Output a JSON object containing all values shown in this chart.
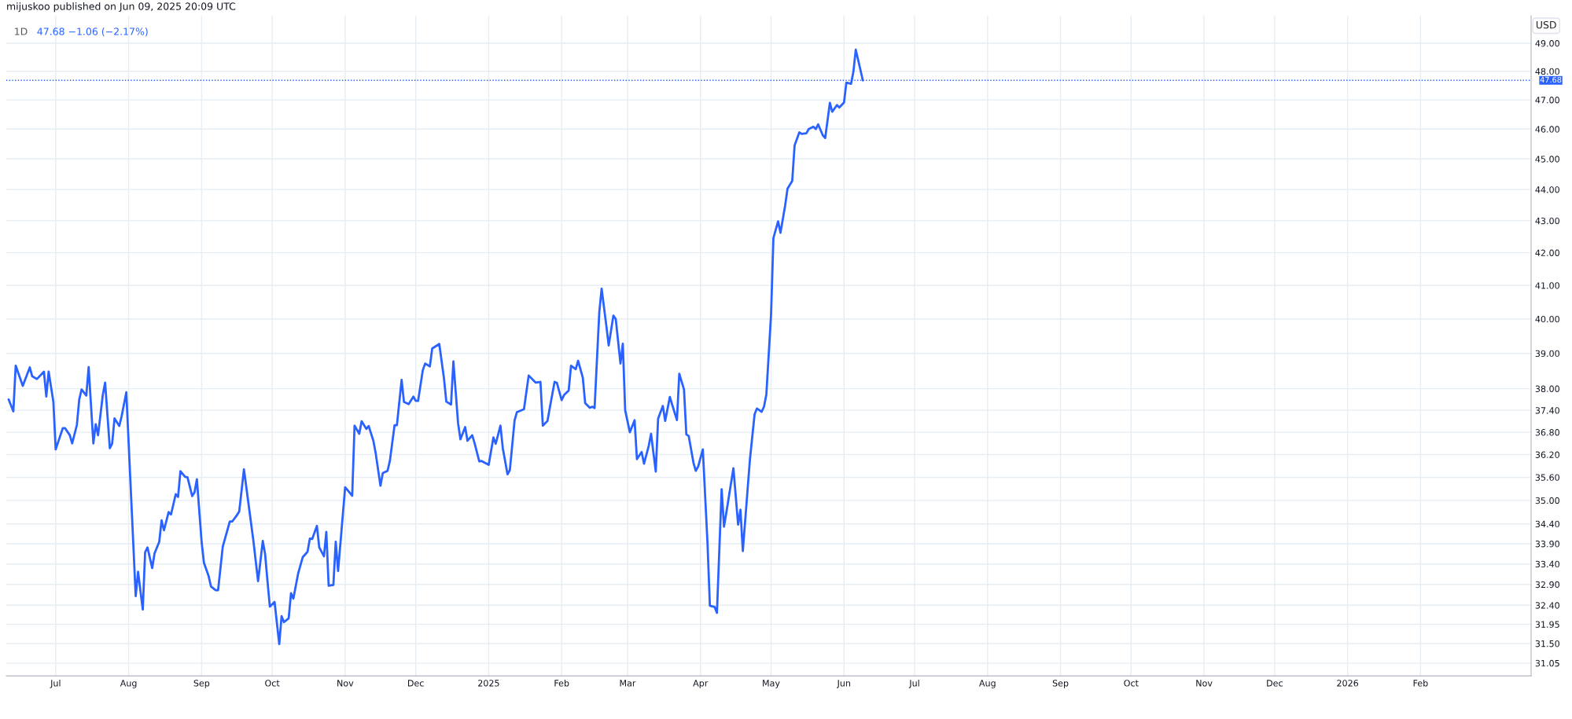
{
  "chart_data": {
    "type": "line",
    "title": "mijuskoo published on Jun 09, 2025 20:09 UTC",
    "subtitle": "1D",
    "ylabel": "USD",
    "annotations": [
      "47.68 −1.06 (−2.17%)"
    ],
    "x": [
      "2024-06-11",
      "2024-06-13",
      "2024-06-14",
      "2024-06-17",
      "2024-06-20",
      "2024-06-21",
      "2024-06-23",
      "2024-06-26",
      "2024-06-27",
      "2024-06-28",
      "2024-06-30",
      "2024-07-01",
      "2024-07-02",
      "2024-07-04",
      "2024-07-05",
      "2024-07-07",
      "2024-07-08",
      "2024-07-10",
      "2024-07-11",
      "2024-07-12",
      "2024-07-14",
      "2024-07-15",
      "2024-07-17",
      "2024-07-18",
      "2024-07-19",
      "2024-07-21",
      "2024-07-22",
      "2024-07-24",
      "2024-07-25",
      "2024-07-26",
      "2024-07-28",
      "2024-07-29",
      "2024-07-31",
      "2024-08-04",
      "2024-08-05",
      "2024-08-07",
      "2024-08-08",
      "2024-08-09",
      "2024-08-11",
      "2024-08-12",
      "2024-08-14",
      "2024-08-15",
      "2024-08-16",
      "2024-08-18",
      "2024-08-19",
      "2024-08-21",
      "2024-08-22",
      "2024-08-23",
      "2024-08-25",
      "2024-08-26",
      "2024-08-28",
      "2024-08-29",
      "2024-08-30",
      "2024-09-01",
      "2024-09-02",
      "2024-09-04",
      "2024-09-05",
      "2024-09-07",
      "2024-09-08",
      "2024-09-10",
      "2024-09-11",
      "2024-09-13",
      "2024-09-14",
      "2024-09-16",
      "2024-09-17",
      "2024-09-19",
      "2024-09-23",
      "2024-09-25",
      "2024-09-27",
      "2024-09-28",
      "2024-09-29",
      "2024-09-30",
      "2024-10-02",
      "2024-10-04",
      "2024-10-05",
      "2024-10-06",
      "2024-10-08",
      "2024-10-09",
      "2024-10-10",
      "2024-10-12",
      "2024-10-13",
      "2024-10-14",
      "2024-10-16",
      "2024-10-17",
      "2024-10-18",
      "2024-10-20",
      "2024-10-21",
      "2024-10-23",
      "2024-10-24",
      "2024-10-25",
      "2024-10-27",
      "2024-10-28",
      "2024-10-29",
      "2024-11-01",
      "2024-11-02",
      "2024-11-04",
      "2024-11-05",
      "2024-11-07",
      "2024-11-08",
      "2024-11-10",
      "2024-11-11",
      "2024-11-13",
      "2024-11-14",
      "2024-11-16",
      "2024-11-17",
      "2024-11-19",
      "2024-11-20",
      "2024-11-22",
      "2024-11-23",
      "2024-11-25",
      "2024-11-26",
      "2024-11-28",
      "2024-11-30",
      "2024-12-01",
      "2024-12-02",
      "2024-12-04",
      "2024-12-05",
      "2024-12-07",
      "2024-12-08",
      "2024-12-11",
      "2024-12-13",
      "2024-12-14",
      "2024-12-16",
      "2024-12-17",
      "2024-12-19",
      "2024-12-20",
      "2024-12-22",
      "2024-12-23",
      "2024-12-25",
      "2024-12-26",
      "2024-12-28",
      "2024-12-29",
      "2025-01-01",
      "2025-01-03",
      "2025-01-04",
      "2025-01-06",
      "2025-01-07",
      "2025-01-09",
      "2025-01-10",
      "2025-01-12",
      "2025-01-13",
      "2025-01-16",
      "2025-01-18",
      "2025-01-21",
      "2025-01-23",
      "2025-01-24",
      "2025-01-26",
      "2025-01-27",
      "2025-01-29",
      "2025-01-30",
      "2025-02-01",
      "2025-02-02",
      "2025-02-04",
      "2025-02-05",
      "2025-02-07",
      "2025-02-08",
      "2025-02-10",
      "2025-02-11",
      "2025-02-13",
      "2025-02-14",
      "2025-02-15",
      "2025-02-17",
      "2025-02-18",
      "2025-02-20",
      "2025-02-21",
      "2025-02-23",
      "2025-02-24",
      "2025-02-26",
      "2025-02-27",
      "2025-02-28",
      "2025-03-02",
      "2025-03-04",
      "2025-03-05",
      "2025-03-07",
      "2025-03-08",
      "2025-03-10",
      "2025-03-11",
      "2025-03-13",
      "2025-03-14",
      "2025-03-16",
      "2025-03-17",
      "2025-03-19",
      "2025-03-20",
      "2025-03-22",
      "2025-03-23",
      "2025-03-25",
      "2025-03-26",
      "2025-03-27",
      "2025-03-29",
      "2025-03-30",
      "2025-03-31",
      "2025-04-02",
      "2025-04-04",
      "2025-04-05",
      "2025-04-07",
      "2025-04-08",
      "2025-04-10",
      "2025-04-11",
      "2025-04-12",
      "2025-04-15",
      "2025-04-17",
      "2025-04-18",
      "2025-04-19",
      "2025-04-22",
      "2025-04-24",
      "2025-04-25",
      "2025-04-27",
      "2025-04-28",
      "2025-04-29",
      "2025-05-01",
      "2025-05-02",
      "2025-05-04",
      "2025-05-05",
      "2025-05-07",
      "2025-05-08",
      "2025-05-10",
      "2025-05-11",
      "2025-05-13",
      "2025-05-14",
      "2025-05-16",
      "2025-05-17",
      "2025-05-19",
      "2025-05-20",
      "2025-05-21",
      "2025-05-23",
      "2025-05-24",
      "2025-05-26",
      "2025-05-27",
      "2025-05-29",
      "2025-05-30",
      "2025-06-01",
      "2025-06-02",
      "2025-06-04",
      "2025-06-05",
      "2025-06-06",
      "2025-06-09"
    ],
    "series": [
      {
        "color": "#2962ff",
        "values": [
          37.7,
          37.37,
          38.65,
          38.08,
          38.6,
          38.35,
          38.27,
          38.48,
          37.78,
          38.48,
          37.64,
          36.34,
          36.53,
          36.91,
          36.91,
          36.72,
          36.5,
          37.0,
          37.7,
          37.98,
          37.81,
          38.61,
          36.5,
          37.02,
          36.72,
          37.82,
          38.17,
          36.37,
          36.5,
          37.18,
          36.97,
          37.23,
          37.9,
          32.62,
          33.21,
          32.3,
          33.69,
          33.81,
          33.3,
          33.66,
          33.95,
          34.49,
          34.24,
          34.7,
          34.64,
          35.16,
          35.09,
          35.76,
          35.61,
          35.6,
          35.11,
          35.21,
          35.55,
          33.95,
          33.43,
          33.1,
          32.85,
          32.76,
          32.76,
          33.83,
          34.04,
          34.46,
          34.46,
          34.62,
          34.72,
          35.81,
          33.98,
          32.98,
          33.97,
          33.64,
          32.98,
          32.37,
          32.48,
          31.49,
          32.14,
          32.0,
          32.09,
          32.69,
          32.56,
          33.16,
          33.37,
          33.57,
          33.7,
          34.03,
          34.02,
          34.35,
          33.81,
          33.59,
          34.2,
          32.87,
          32.89,
          33.95,
          33.23,
          35.34,
          35.27,
          35.12,
          36.98,
          36.76,
          37.1,
          36.89,
          36.97,
          36.57,
          36.23,
          35.38,
          35.71,
          35.77,
          36.03,
          36.99,
          36.99,
          38.25,
          37.63,
          37.57,
          37.78,
          37.66,
          37.66,
          38.52,
          38.71,
          38.63,
          39.14,
          39.27,
          38.29,
          37.64,
          37.56,
          38.77,
          37.04,
          36.61,
          36.94,
          36.57,
          36.72,
          36.51,
          36.02,
          36.03,
          35.93,
          36.66,
          36.49,
          36.98,
          36.37,
          35.68,
          35.79,
          37.12,
          37.35,
          37.43,
          38.37,
          38.17,
          38.19,
          36.98,
          37.11,
          37.48,
          38.19,
          38.16,
          37.68,
          37.82,
          37.95,
          38.65,
          38.55,
          38.79,
          38.31,
          37.6,
          37.47,
          37.5,
          37.46,
          40.2,
          40.9,
          39.8,
          39.23,
          40.1,
          40.0,
          38.71,
          39.28,
          37.4,
          36.8,
          37.13,
          36.08,
          36.27,
          35.96,
          36.43,
          36.76,
          35.75,
          37.17,
          37.52,
          37.11,
          37.77,
          37.55,
          37.13,
          38.42,
          37.98,
          36.74,
          36.7,
          35.99,
          35.77,
          35.88,
          36.34,
          33.91,
          32.39,
          32.36,
          32.22,
          35.29,
          34.33,
          34.69,
          35.84,
          34.38,
          34.76,
          33.72,
          36.06,
          37.29,
          37.45,
          37.36,
          37.5,
          37.84,
          40.13,
          42.46,
          42.98,
          42.62,
          43.49,
          44.03,
          44.28,
          45.45,
          45.89,
          45.84,
          45.86,
          46.0,
          46.08,
          46.0,
          46.16,
          45.79,
          45.7,
          46.9,
          46.59,
          46.82,
          46.74,
          46.91,
          47.6,
          47.56,
          47.99,
          48.77,
          47.68
        ]
      }
    ],
    "xlim": [
      "2024-06-10",
      "2026-03-20"
    ],
    "xticks": [
      {
        "value": "2024-07-01",
        "label": "Jul"
      },
      {
        "value": "2024-08-01",
        "label": "Aug"
      },
      {
        "value": "2024-09-01",
        "label": "Sep"
      },
      {
        "value": "2024-10-01",
        "label": "Oct"
      },
      {
        "value": "2024-11-01",
        "label": "Nov"
      },
      {
        "value": "2024-12-01",
        "label": "Dec"
      },
      {
        "value": "2025-01-01",
        "label": "2025"
      },
      {
        "value": "2025-02-01",
        "label": "Feb"
      },
      {
        "value": "2025-03-01",
        "label": "Mar"
      },
      {
        "value": "2025-04-01",
        "label": "Apr"
      },
      {
        "value": "2025-05-01",
        "label": "May"
      },
      {
        "value": "2025-06-01",
        "label": "Jun"
      },
      {
        "value": "2025-07-01",
        "label": "Jul"
      },
      {
        "value": "2025-08-01",
        "label": "Aug"
      },
      {
        "value": "2025-09-01",
        "label": "Sep"
      },
      {
        "value": "2025-10-01",
        "label": "Oct"
      },
      {
        "value": "2025-11-01",
        "label": "Nov"
      },
      {
        "value": "2025-12-01",
        "label": "Dec"
      },
      {
        "value": "2026-01-01",
        "label": "2026"
      },
      {
        "value": "2026-02-01",
        "label": "Feb"
      }
    ],
    "ylim": [
      30.76,
      50.0
    ],
    "yticks": [
      {
        "value": 31.05,
        "label": "31.05"
      },
      {
        "value": 31.5,
        "label": "31.50"
      },
      {
        "value": 31.95,
        "label": "31.95"
      },
      {
        "value": 32.4,
        "label": "32.40"
      },
      {
        "value": 32.9,
        "label": "32.90"
      },
      {
        "value": 33.4,
        "label": "33.40"
      },
      {
        "value": 33.9,
        "label": "33.90"
      },
      {
        "value": 34.4,
        "label": "34.40"
      },
      {
        "value": 35,
        "label": "35.00"
      },
      {
        "value": 35.6,
        "label": "35.60"
      },
      {
        "value": 36.2,
        "label": "36.20"
      },
      {
        "value": 36.8,
        "label": "36.80"
      },
      {
        "value": 37.4,
        "label": "37.40"
      },
      {
        "value": 38,
        "label": "38.00"
      },
      {
        "value": 39,
        "label": "39.00"
      },
      {
        "value": 40,
        "label": "40.00"
      },
      {
        "value": 41,
        "label": "41.00"
      },
      {
        "value": 42,
        "label": "42.00"
      },
      {
        "value": 43,
        "label": "43.00"
      },
      {
        "value": 44,
        "label": "44.00"
      },
      {
        "value": 45,
        "label": "45.00"
      },
      {
        "value": 46,
        "label": "46.00"
      },
      {
        "value": 47,
        "label": "47.00"
      },
      {
        "value": 48,
        "label": "48.00"
      },
      {
        "value": 49,
        "label": "49.00"
      }
    ],
    "log": true,
    "grid": true,
    "marker": "none",
    "line_style": "solid",
    "ref_lines": [
      {
        "axis": "y",
        "value": 47.68,
        "label": "47.68",
        "color": "#2962ff",
        "line_style": "dotted"
      }
    ]
  }
}
